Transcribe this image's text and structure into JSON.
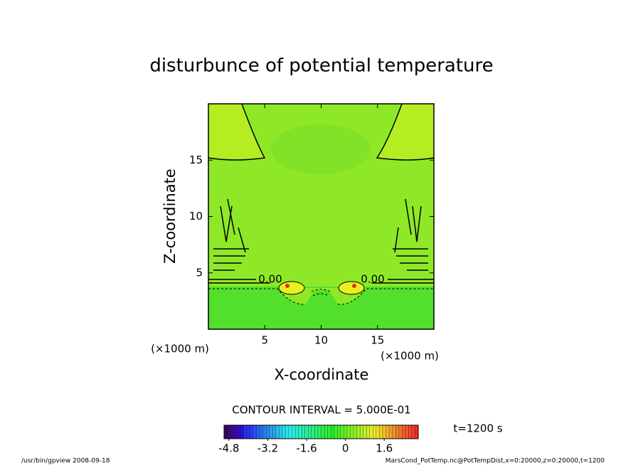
{
  "chart_data": {
    "type": "contour",
    "title": "disturbunce of potential temperature",
    "xlabel": "X-coordinate",
    "ylabel": "Z-coordinate",
    "xunit": "(×1000 m)",
    "yunit": "(×1000 m)",
    "xlim": [
      0,
      20
    ],
    "ylim": [
      0,
      20
    ],
    "xticks": [
      5,
      10,
      15
    ],
    "yticks": [
      5,
      10,
      15
    ],
    "contour_labels": [
      "0.00",
      "0.00"
    ],
    "contour_interval": "CONTOUR INTERVAL = 5.000E-01",
    "time_label": "t=1200 s",
    "colorbar_lim": [
      -5,
      3
    ],
    "colorbar_ticks": [
      -4.8,
      -3.2,
      -1.6,
      0,
      1.6
    ],
    "footer_left": "/usr/bin/gpview  2008-09-18",
    "footer_right": "MarsCond_PotTemp.nc@PotTempDist,x=0:20000,z=0:20000,t=1200"
  }
}
